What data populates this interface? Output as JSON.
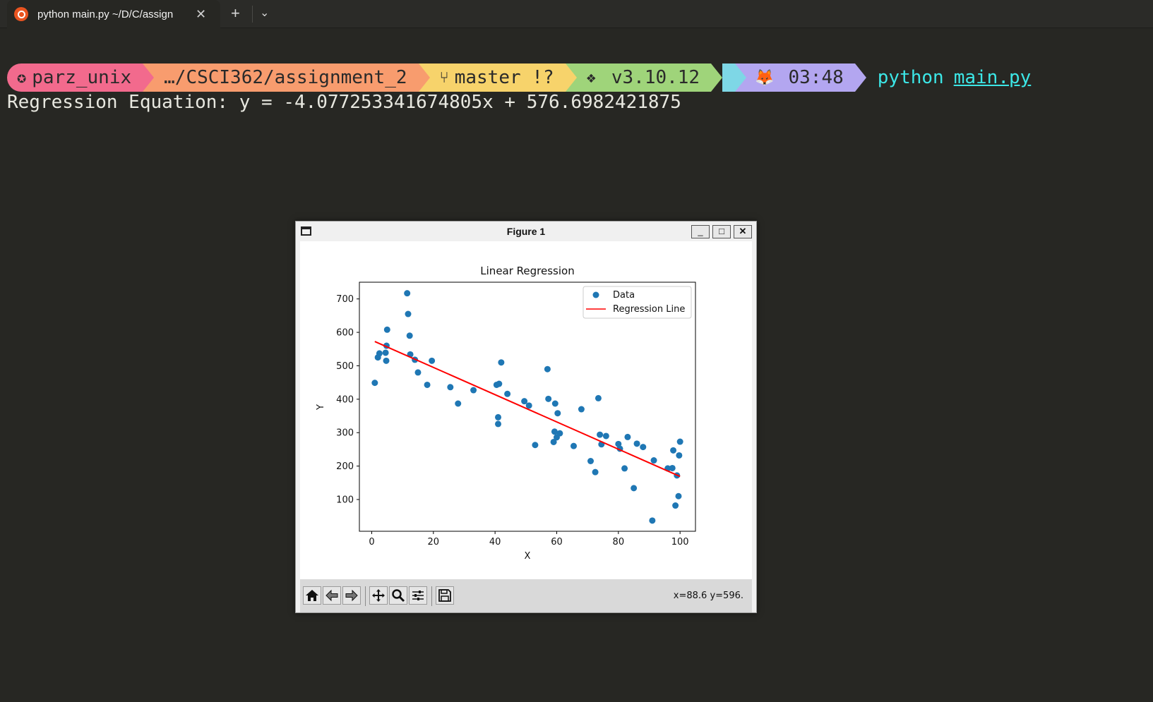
{
  "terminal": {
    "tab_title": "python main.py ~/D/C/assign",
    "tab_close_glyph": "✕",
    "new_tab_glyph": "+",
    "dropdown_glyph": "⌄",
    "prompt": {
      "user": "parz_unix",
      "path": "…/CSCI362/assignment_2",
      "git": "master !?",
      "python": "v3.10.12",
      "time": "03:48"
    },
    "command": "python",
    "command_arg": "main.py",
    "output_line": "Regression Equation: y = -4.077253341674805x + 576.6982421875",
    "colors": {
      "background": "#272723",
      "seg_user": "#f26a8d",
      "seg_path": "#f89c6e",
      "seg_git": "#f7d36b",
      "seg_python": "#9fd47a",
      "seg_time": "#b3a6f0",
      "command": "#3ce7e7"
    }
  },
  "figure_window": {
    "title": "Figure 1",
    "min_glyph": "_",
    "max_glyph": "□",
    "close_glyph": "✕",
    "toolbar": {
      "buttons": [
        "home-icon",
        "back-icon",
        "forward-icon",
        "pan-icon",
        "zoom-icon",
        "configure-subplots-icon",
        "save-icon"
      ]
    },
    "coords_readout": "x=88.6 y=596."
  },
  "chart_data": {
    "type": "scatter",
    "title": "Linear Regression",
    "xlabel": "X",
    "ylabel": "Y",
    "xlim": [
      -4,
      105
    ],
    "ylim": [
      5,
      750
    ],
    "xticks": [
      0,
      20,
      40,
      60,
      80,
      100
    ],
    "yticks": [
      100,
      200,
      300,
      400,
      500,
      600,
      700
    ],
    "legend": {
      "placement": "top-right",
      "entries": [
        "Data",
        "Regression Line"
      ]
    },
    "colors": {
      "points": "#1f77b4",
      "line": "#ff0000"
    },
    "series": [
      {
        "name": "Data",
        "x": [
          1,
          2,
          2.5,
          4.5,
          4.7,
          4.8,
          5,
          11.5,
          11.8,
          12.3,
          12.5,
          14,
          15,
          18,
          19.5,
          25.5,
          28,
          33,
          40.5,
          41,
          41,
          41.3,
          42,
          44,
          49.5,
          51,
          53,
          57,
          57.3,
          59,
          59.3,
          59.5,
          60,
          60.3,
          61,
          65.5,
          68,
          71,
          72.5,
          73.5,
          74,
          74.5,
          76,
          80,
          80.5,
          82,
          83,
          85,
          86,
          88,
          91,
          91.5,
          96,
          97.5,
          97.8,
          98.5,
          99,
          99.5,
          99.7,
          100
        ],
        "y": [
          449,
          525,
          537,
          539,
          515,
          560,
          608,
          717,
          655,
          590,
          534,
          518,
          480,
          443,
          515,
          436,
          387,
          427,
          443,
          346,
          326,
          446,
          510,
          416,
          394,
          381,
          263,
          490,
          401,
          272,
          303,
          387,
          286,
          358,
          298,
          260,
          370,
          215,
          182,
          403,
          294,
          265,
          290,
          266,
          252,
          193,
          287,
          134,
          267,
          257,
          37,
          217,
          193,
          194,
          247,
          82,
          172,
          110,
          232,
          273
        ]
      },
      {
        "name": "Regression Line",
        "slope": -4.077253341674805,
        "intercept": 576.6982421875,
        "x_range": [
          1,
          100
        ]
      }
    ]
  }
}
